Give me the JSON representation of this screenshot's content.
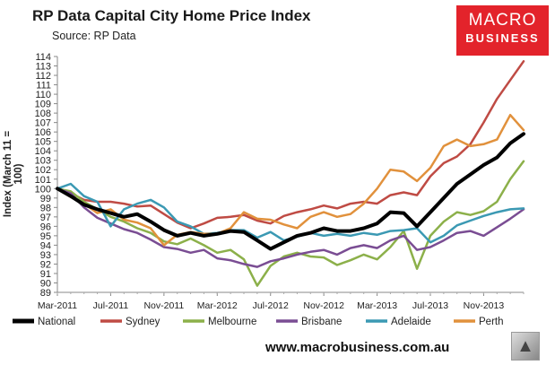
{
  "header": {
    "title": "RP Data Capital City Home Price Index",
    "subtitle": "Source: RP Data"
  },
  "logo": {
    "line1": "MACRO",
    "line2": "BUSINESS",
    "color": "#e3232b"
  },
  "footer": {
    "url": "www.macrobusiness.com.au",
    "mascot_icon": "wolf-mascot-icon"
  },
  "chart_data": {
    "type": "line",
    "ylabel": "Index (March 11 = 100)",
    "xlabel": "",
    "ylim": [
      89,
      114
    ],
    "yticks": [
      89,
      90,
      91,
      92,
      93,
      94,
      95,
      96,
      97,
      98,
      99,
      100,
      101,
      102,
      103,
      104,
      105,
      106,
      107,
      108,
      109,
      110,
      111,
      112,
      113,
      114
    ],
    "xlim": [
      0,
      35
    ],
    "xtick_labels": [
      "Mar-2011",
      "Jul-2011",
      "Nov-2011",
      "Mar-2012",
      "Jul-2012",
      "Nov-2012",
      "Mar-2013",
      "Jul-2013",
      "Nov-2013"
    ],
    "xtick_positions": [
      0,
      4,
      8,
      12,
      16,
      20,
      24,
      28,
      32
    ],
    "legend_position": "bottom",
    "series": [
      {
        "name": "National",
        "color": "#000000",
        "width": 4,
        "points": [
          [
            0,
            100
          ],
          [
            1,
            99.2
          ],
          [
            2,
            98.3
          ],
          [
            3,
            97.8
          ],
          [
            4,
            97.4
          ],
          [
            5,
            97.0
          ],
          [
            6,
            97.3
          ],
          [
            7,
            96.5
          ],
          [
            8,
            95.6
          ],
          [
            9,
            95.0
          ],
          [
            10,
            95.3
          ],
          [
            11,
            95.0
          ],
          [
            12,
            95.2
          ],
          [
            13,
            95.5
          ],
          [
            14,
            95.4
          ],
          [
            15,
            94.5
          ],
          [
            16,
            93.6
          ],
          [
            17,
            94.3
          ],
          [
            18,
            95.0
          ],
          [
            19,
            95.3
          ],
          [
            20,
            95.8
          ],
          [
            21,
            95.5
          ],
          [
            22,
            95.5
          ],
          [
            23,
            95.8
          ],
          [
            24,
            96.3
          ],
          [
            25,
            97.5
          ],
          [
            26,
            97.4
          ],
          [
            27,
            96.0
          ],
          [
            28,
            97.5
          ],
          [
            29,
            99.0
          ],
          [
            30,
            100.5
          ],
          [
            31,
            101.5
          ],
          [
            32,
            102.5
          ],
          [
            33,
            103.3
          ],
          [
            34,
            104.8
          ],
          [
            35,
            105.8
          ]
        ]
      },
      {
        "name": "Sydney",
        "color": "#bf4b44",
        "width": 2.5,
        "points": [
          [
            0,
            100
          ],
          [
            1,
            99.5
          ],
          [
            2,
            98.8
          ],
          [
            3,
            98.6
          ],
          [
            4,
            98.6
          ],
          [
            5,
            98.4
          ],
          [
            6,
            98.1
          ],
          [
            7,
            98.2
          ],
          [
            8,
            97.3
          ],
          [
            9,
            96.4
          ],
          [
            10,
            95.8
          ],
          [
            11,
            96.3
          ],
          [
            12,
            96.9
          ],
          [
            13,
            97.0
          ],
          [
            14,
            97.2
          ],
          [
            15,
            96.6
          ],
          [
            16,
            96.3
          ],
          [
            17,
            97.1
          ],
          [
            18,
            97.5
          ],
          [
            19,
            97.8
          ],
          [
            20,
            98.2
          ],
          [
            21,
            97.9
          ],
          [
            22,
            98.4
          ],
          [
            23,
            98.6
          ],
          [
            24,
            98.4
          ],
          [
            25,
            99.3
          ],
          [
            26,
            99.6
          ],
          [
            27,
            99.3
          ],
          [
            28,
            101.3
          ],
          [
            29,
            102.7
          ],
          [
            30,
            103.4
          ],
          [
            31,
            104.7
          ],
          [
            32,
            107.0
          ],
          [
            33,
            109.5
          ],
          [
            34,
            111.5
          ],
          [
            35,
            113.5
          ]
        ]
      },
      {
        "name": "Melbourne",
        "color": "#8cb04a",
        "width": 2.5,
        "points": [
          [
            0,
            100
          ],
          [
            1,
            99.7
          ],
          [
            2,
            98.6
          ],
          [
            3,
            97.8
          ],
          [
            4,
            97.0
          ],
          [
            5,
            96.5
          ],
          [
            6,
            95.8
          ],
          [
            7,
            95.3
          ],
          [
            8,
            94.4
          ],
          [
            9,
            94.1
          ],
          [
            10,
            94.7
          ],
          [
            11,
            94.0
          ],
          [
            12,
            93.2
          ],
          [
            13,
            93.5
          ],
          [
            14,
            92.5
          ],
          [
            15,
            89.7
          ],
          [
            16,
            91.8
          ],
          [
            17,
            92.8
          ],
          [
            18,
            93.2
          ],
          [
            19,
            92.8
          ],
          [
            20,
            92.7
          ],
          [
            21,
            91.9
          ],
          [
            22,
            92.4
          ],
          [
            23,
            93.0
          ],
          [
            24,
            92.5
          ],
          [
            25,
            93.8
          ],
          [
            26,
            95.5
          ],
          [
            27,
            91.5
          ],
          [
            28,
            95.0
          ],
          [
            29,
            96.5
          ],
          [
            30,
            97.5
          ],
          [
            31,
            97.2
          ],
          [
            32,
            97.6
          ],
          [
            33,
            98.6
          ],
          [
            34,
            101.0
          ],
          [
            35,
            102.9
          ]
        ]
      },
      {
        "name": "Brisbane",
        "color": "#7a4d93",
        "width": 2.5,
        "points": [
          [
            0,
            100
          ],
          [
            1,
            99.5
          ],
          [
            2,
            98.0
          ],
          [
            3,
            96.9
          ],
          [
            4,
            96.3
          ],
          [
            5,
            95.7
          ],
          [
            6,
            95.3
          ],
          [
            7,
            94.6
          ],
          [
            8,
            93.8
          ],
          [
            9,
            93.6
          ],
          [
            10,
            93.2
          ],
          [
            11,
            93.5
          ],
          [
            12,
            92.6
          ],
          [
            13,
            92.4
          ],
          [
            14,
            92.0
          ],
          [
            15,
            91.7
          ],
          [
            16,
            92.3
          ],
          [
            17,
            92.6
          ],
          [
            18,
            93.0
          ],
          [
            19,
            93.3
          ],
          [
            20,
            93.5
          ],
          [
            21,
            93.0
          ],
          [
            22,
            93.7
          ],
          [
            23,
            94.0
          ],
          [
            24,
            93.7
          ],
          [
            25,
            94.5
          ],
          [
            26,
            95.0
          ],
          [
            27,
            93.5
          ],
          [
            28,
            93.8
          ],
          [
            29,
            94.5
          ],
          [
            30,
            95.3
          ],
          [
            31,
            95.5
          ],
          [
            32,
            95.0
          ],
          [
            33,
            95.9
          ],
          [
            34,
            96.8
          ],
          [
            35,
            97.8
          ]
        ]
      },
      {
        "name": "Adelaide",
        "color": "#3b99b3",
        "width": 2.5,
        "points": [
          [
            0,
            100
          ],
          [
            1,
            100.5
          ],
          [
            2,
            99.2
          ],
          [
            3,
            98.6
          ],
          [
            4,
            96.0
          ],
          [
            5,
            97.8
          ],
          [
            6,
            98.4
          ],
          [
            7,
            98.8
          ],
          [
            8,
            98.0
          ],
          [
            9,
            96.5
          ],
          [
            10,
            96.0
          ],
          [
            11,
            95.2
          ],
          [
            12,
            95.3
          ],
          [
            13,
            95.6
          ],
          [
            14,
            95.6
          ],
          [
            15,
            94.8
          ],
          [
            16,
            95.4
          ],
          [
            17,
            94.5
          ],
          [
            18,
            94.9
          ],
          [
            19,
            95.3
          ],
          [
            20,
            95.0
          ],
          [
            21,
            95.2
          ],
          [
            22,
            95.0
          ],
          [
            23,
            95.3
          ],
          [
            24,
            95.1
          ],
          [
            25,
            95.5
          ],
          [
            26,
            95.6
          ],
          [
            27,
            95.8
          ],
          [
            28,
            94.3
          ],
          [
            29,
            95.0
          ],
          [
            30,
            96.1
          ],
          [
            31,
            96.6
          ],
          [
            32,
            97.1
          ],
          [
            33,
            97.5
          ],
          [
            34,
            97.8
          ],
          [
            35,
            97.9
          ]
        ]
      },
      {
        "name": "Perth",
        "color": "#e1913c",
        "width": 2.5,
        "points": [
          [
            0,
            100
          ],
          [
            1,
            99.1
          ],
          [
            2,
            98.4
          ],
          [
            3,
            97.4
          ],
          [
            4,
            97.8
          ],
          [
            5,
            96.7
          ],
          [
            6,
            96.4
          ],
          [
            7,
            95.8
          ],
          [
            8,
            94.0
          ],
          [
            9,
            95.1
          ],
          [
            10,
            95.4
          ],
          [
            11,
            95.2
          ],
          [
            12,
            95.2
          ],
          [
            13,
            95.8
          ],
          [
            14,
            97.5
          ],
          [
            15,
            96.8
          ],
          [
            16,
            96.7
          ],
          [
            17,
            96.2
          ],
          [
            18,
            95.8
          ],
          [
            19,
            97.0
          ],
          [
            20,
            97.5
          ],
          [
            21,
            97.0
          ],
          [
            22,
            97.3
          ],
          [
            23,
            98.4
          ],
          [
            24,
            100.0
          ],
          [
            25,
            102.0
          ],
          [
            26,
            101.8
          ],
          [
            27,
            100.8
          ],
          [
            28,
            102.2
          ],
          [
            29,
            104.5
          ],
          [
            30,
            105.2
          ],
          [
            31,
            104.5
          ],
          [
            32,
            104.7
          ],
          [
            33,
            105.2
          ],
          [
            34,
            107.8
          ],
          [
            35,
            106.2
          ]
        ]
      }
    ]
  }
}
